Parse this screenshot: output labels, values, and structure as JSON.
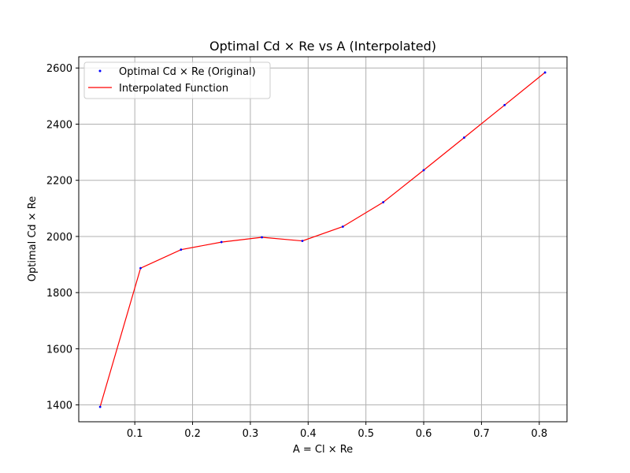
{
  "chart_data": {
    "type": "line",
    "title": "Optimal Cd × Re vs A (Interpolated)",
    "xlabel": "A = Cl × Re",
    "ylabel": "Optimal Cd × Re",
    "xlim": [
      0.003,
      0.848
    ],
    "ylim": [
      1340,
      2640
    ],
    "xticks": [
      "0.1",
      "0.2",
      "0.3",
      "0.4",
      "0.5",
      "0.6",
      "0.7",
      "0.8"
    ],
    "yticks": [
      "1400",
      "1600",
      "1800",
      "2000",
      "2200",
      "2400",
      "2600"
    ],
    "grid": true,
    "legend_position": "top-left",
    "series": [
      {
        "name": "Optimal Cd × Re (Original)",
        "kind": "scatter",
        "color": "#0000ff",
        "x": [
          0.04,
          0.11,
          0.18,
          0.25,
          0.32,
          0.39,
          0.46,
          0.53,
          0.6,
          0.67,
          0.74,
          0.81
        ],
        "y": [
          1393,
          1887,
          1953,
          1980,
          1997,
          1984,
          2035,
          2122,
          2236,
          2352,
          2468,
          2584
        ]
      },
      {
        "name": "Interpolated Function",
        "kind": "line",
        "color": "#ff0000",
        "x": [
          0.04,
          0.11,
          0.18,
          0.25,
          0.32,
          0.39,
          0.46,
          0.53,
          0.6,
          0.67,
          0.74,
          0.81
        ],
        "y": [
          1393,
          1887,
          1953,
          1980,
          1997,
          1984,
          2035,
          2122,
          2236,
          2352,
          2468,
          2584
        ]
      }
    ]
  }
}
